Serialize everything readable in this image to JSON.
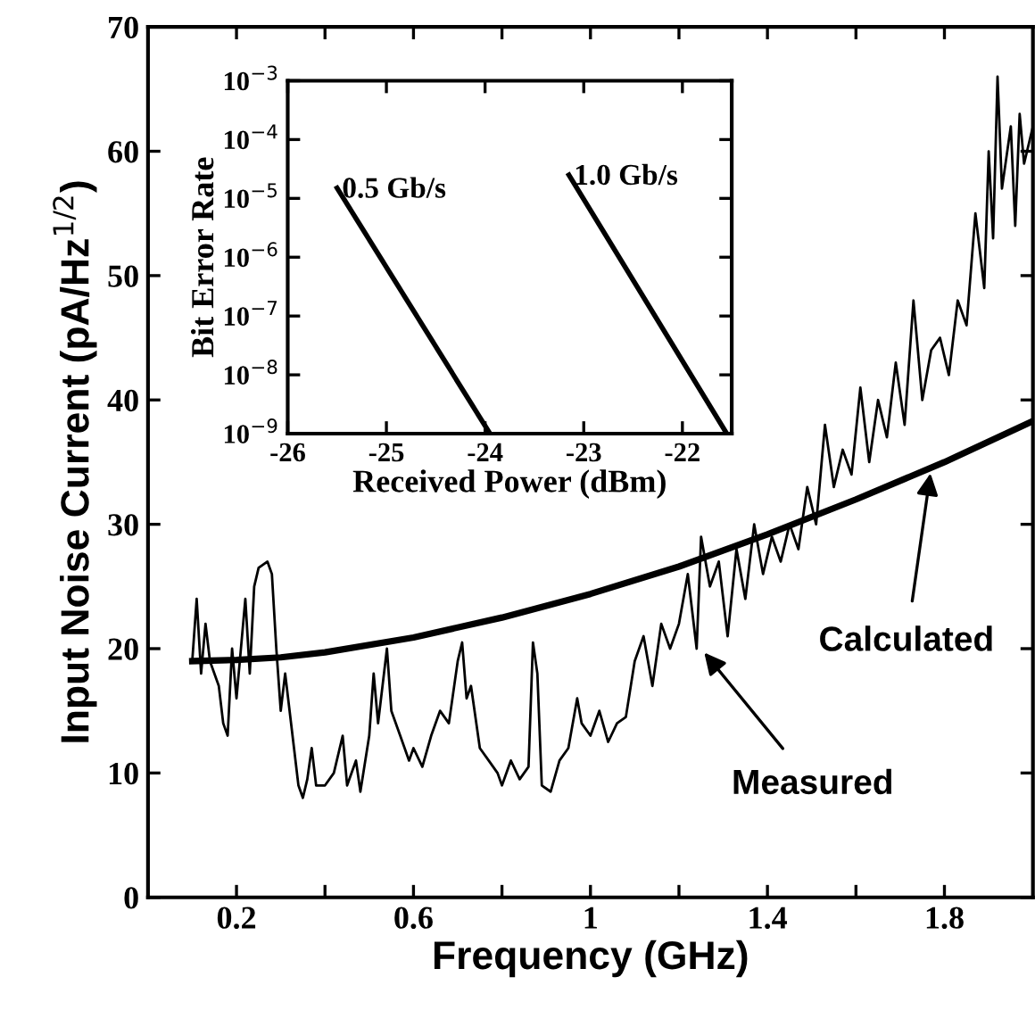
{
  "chart_data": [
    {
      "type": "line",
      "xlabel": "Frequency (GHz)",
      "ylabel": "Input Noise Current (pA/Hz$^{1/2}$)",
      "xlim": [
        0,
        2
      ],
      "ylim": [
        0,
        70
      ],
      "xticks": [
        {
          "value": 0.2,
          "label": "0.2"
        },
        {
          "value": 0.4,
          "label": null
        },
        {
          "value": 0.6,
          "label": "0.6"
        },
        {
          "value": 0.8,
          "label": null
        },
        {
          "value": 1,
          "label": "1"
        },
        {
          "value": 1.2,
          "label": null
        },
        {
          "value": 1.4,
          "label": "1.4"
        },
        {
          "value": 1.6,
          "label": null
        },
        {
          "value": 1.8,
          "label": "1.8"
        }
      ],
      "yticks": [
        0,
        10,
        20,
        30,
        40,
        50,
        60,
        70
      ],
      "grid": false,
      "legend": false,
      "marker": "none",
      "line_style": "solid",
      "annotations": [
        {
          "text": "Calculated",
          "x": 1.77,
          "y": 34.5
        },
        {
          "text": "Measured",
          "x": 1.25,
          "y": 20
        }
      ],
      "series": [
        {
          "color": "#000000",
          "x": [
            0.1,
            0.11,
            0.12,
            0.13,
            0.14,
            0.16,
            0.17,
            0.18,
            0.19,
            0.2,
            0.22,
            0.23,
            0.24,
            0.25,
            0.27,
            0.28,
            0.29,
            0.3,
            0.31,
            0.33,
            0.34,
            0.35,
            0.36,
            0.37,
            0.38,
            0.4,
            0.42,
            0.44,
            0.45,
            0.47,
            0.48,
            0.5,
            0.51,
            0.52,
            0.54,
            0.55,
            0.57,
            0.59,
            0.6,
            0.62,
            0.64,
            0.66,
            0.68,
            0.7,
            0.71,
            0.72,
            0.73,
            0.75,
            0.77,
            0.79,
            0.8,
            0.82,
            0.84,
            0.86,
            0.87,
            0.88,
            0.89,
            0.91,
            0.93,
            0.95,
            0.97,
            0.98,
            1.0,
            1.02,
            1.04,
            1.06,
            1.08,
            1.1,
            1.12,
            1.14,
            1.16,
            1.18,
            1.2,
            1.22,
            1.24,
            1.25,
            1.27,
            1.29,
            1.31,
            1.33,
            1.35,
            1.37,
            1.39,
            1.41,
            1.43,
            1.45,
            1.47,
            1.49,
            1.51,
            1.53,
            1.55,
            1.57,
            1.59,
            1.61,
            1.63,
            1.65,
            1.67,
            1.69,
            1.71,
            1.73,
            1.75,
            1.77,
            1.79,
            1.81,
            1.83,
            1.85,
            1.87,
            1.88,
            1.89,
            1.9,
            1.91,
            1.92,
            1.93,
            1.95,
            1.96,
            1.97,
            1.98,
            2.0
          ],
          "values": [
            19,
            24,
            18,
            22,
            19,
            17,
            14,
            13,
            20,
            16,
            24,
            18,
            25,
            26.5,
            27,
            26,
            20,
            15,
            18,
            12,
            9,
            8,
            9.5,
            12,
            9,
            9,
            10,
            13,
            9,
            11,
            8.5,
            13,
            18,
            14,
            20,
            15,
            13,
            11,
            12,
            10.5,
            13,
            15,
            14,
            19,
            20.5,
            16,
            17,
            12,
            11,
            10,
            9,
            11,
            9.5,
            10.5,
            20.5,
            18,
            9,
            8.5,
            11,
            12,
            16,
            14,
            13,
            15,
            12.5,
            14,
            14.5,
            19,
            21,
            17,
            22,
            20,
            22,
            26,
            20,
            29,
            25,
            27,
            21,
            28,
            24,
            30,
            26,
            29,
            27,
            30,
            28,
            33,
            30,
            38,
            33,
            36,
            34,
            41,
            35,
            40,
            37,
            43,
            38,
            48,
            40,
            44,
            45,
            42,
            48,
            46,
            55,
            52,
            49,
            60,
            53,
            66,
            57,
            62,
            54,
            63,
            59,
            62
          ]
        },
        {
          "color": "#000000",
          "x": [
            0.1,
            0.2,
            0.3,
            0.4,
            0.6,
            0.8,
            1.0,
            1.2,
            1.4,
            1.6,
            1.8,
            2.0
          ],
          "values": [
            19,
            19.1,
            19.3,
            19.7,
            20.9,
            22.5,
            24.4,
            26.6,
            29.2,
            32.0,
            35.0,
            38.3
          ]
        }
      ]
    },
    {
      "type": "line",
      "xlabel": "Received Power (dBm)",
      "ylabel": "Bit Error Rate",
      "log": "y",
      "xlim": [
        -26,
        -21.5
      ],
      "ylim": [
        1e-09,
        0.001
      ],
      "xticks": [
        -26,
        -25,
        -24,
        -23,
        -22
      ],
      "yticks": [
        {
          "value": 1e-09,
          "label": "10$^{−9}$"
        },
        {
          "value": 1e-08,
          "label": "10$^{−8}$"
        },
        {
          "value": 1e-07,
          "label": "10$^{−7}$"
        },
        {
          "value": 1e-06,
          "label": "10$^{−6}$"
        },
        {
          "value": 1e-05,
          "label": "10$^{−5}$"
        },
        {
          "value": 0.0001,
          "label": "10$^{−4}$"
        },
        {
          "value": 0.001,
          "label": "10$^{−3}$"
        }
      ],
      "grid": false,
      "legend": false,
      "marker": "none",
      "line_style": "solid",
      "series": [
        {
          "name": "0.5 Gb/s",
          "color": "#000000",
          "x": [
            -25.5,
            -23.95
          ],
          "values": [
            1.5e-05,
            1e-09
          ]
        },
        {
          "name": "1.0 Gb/s",
          "color": "#000000",
          "x": [
            -23.15,
            -21.55
          ],
          "values": [
            2.5e-05,
            1e-09
          ]
        }
      ]
    }
  ]
}
